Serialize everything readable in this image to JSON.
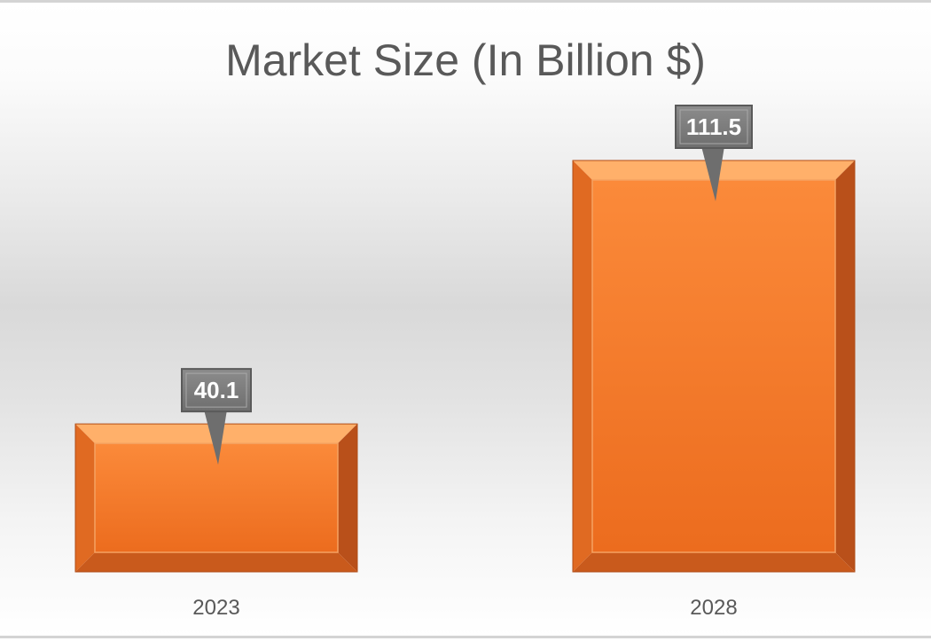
{
  "chart_data": {
    "type": "bar",
    "title": "Market Size (In Billion $)",
    "xlabel": "",
    "ylabel": "",
    "categories": [
      "2023",
      "2028"
    ],
    "values": [
      40.1,
      111.5
    ],
    "value_labels": [
      "40.1",
      "111.5"
    ],
    "ylim": [
      0,
      111.5
    ],
    "grid": false,
    "legend": "none",
    "colors": {
      "bar": "#f07a28",
      "bar_light": "#ff9a4a",
      "bar_dark": "#c9561a",
      "label_box": "#7f7f7f",
      "title": "#595959"
    }
  }
}
